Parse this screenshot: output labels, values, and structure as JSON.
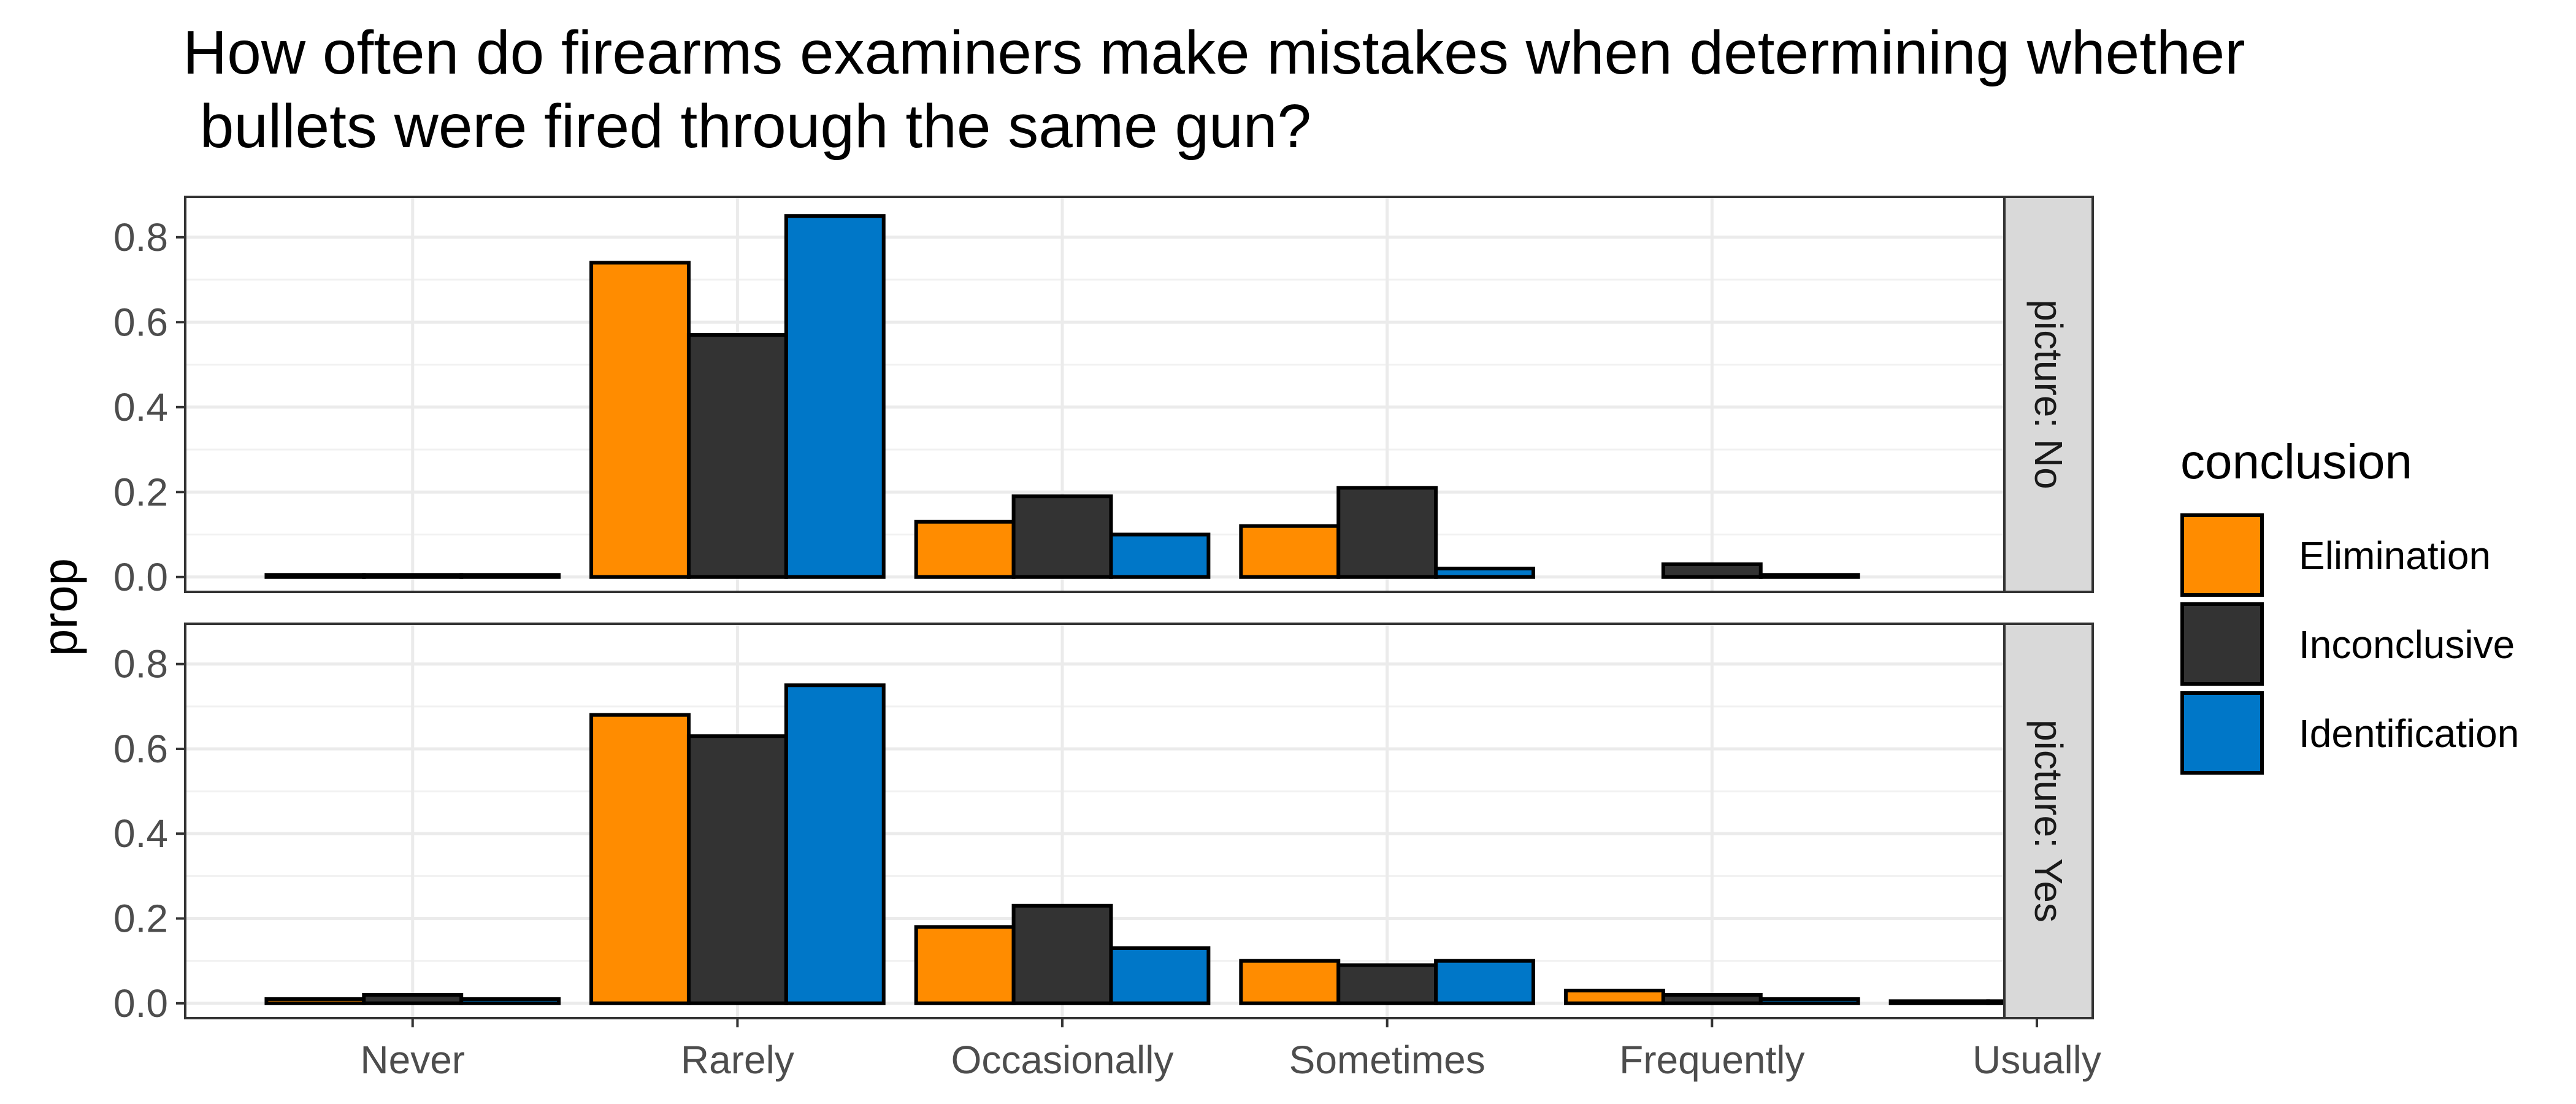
{
  "chart_data": {
    "type": "bar",
    "title_lines": [
      "How often do firearms examiners make mistakes when determining whether",
      " bullets were fired through the same gun?"
    ],
    "ylabel": "prop",
    "xlabel": "",
    "categories": [
      "Never",
      "Rarely",
      "Occasionally",
      "Sometimes",
      "Frequently",
      "Usually"
    ],
    "ylim": [
      -0.035,
      0.895
    ],
    "yticks": [
      0.0,
      0.2,
      0.4,
      0.6,
      0.8
    ],
    "ytick_labels": [
      "0.0",
      "0.2",
      "0.4",
      "0.6",
      "0.8"
    ],
    "grid": true,
    "legend": {
      "title": "conclusion",
      "position": "right",
      "entries": [
        "Elimination",
        "Inconclusive",
        "Identification"
      ]
    },
    "series_colors": {
      "Elimination": "#FF8C00",
      "Inconclusive": "#333333",
      "Identification": "#0077C8"
    },
    "panels": [
      {
        "strip_label": "picture: No",
        "series": [
          {
            "name": "Elimination",
            "values": [
              0.005,
              0.74,
              0.13,
              0.12,
              0,
              0
            ]
          },
          {
            "name": "Inconclusive",
            "values": [
              0.005,
              0.57,
              0.19,
              0.21,
              0.03,
              0
            ]
          },
          {
            "name": "Identification",
            "values": [
              0.005,
              0.85,
              0.1,
              0.02,
              0.005,
              0
            ]
          }
        ]
      },
      {
        "strip_label": "picture: Yes",
        "series": [
          {
            "name": "Elimination",
            "values": [
              0.01,
              0.68,
              0.18,
              0.1,
              0.03,
              0.005
            ]
          },
          {
            "name": "Inconclusive",
            "values": [
              0.02,
              0.63,
              0.23,
              0.09,
              0.02,
              0.005
            ]
          },
          {
            "name": "Identification",
            "values": [
              0.01,
              0.75,
              0.13,
              0.1,
              0.01,
              0
            ]
          }
        ]
      }
    ]
  }
}
